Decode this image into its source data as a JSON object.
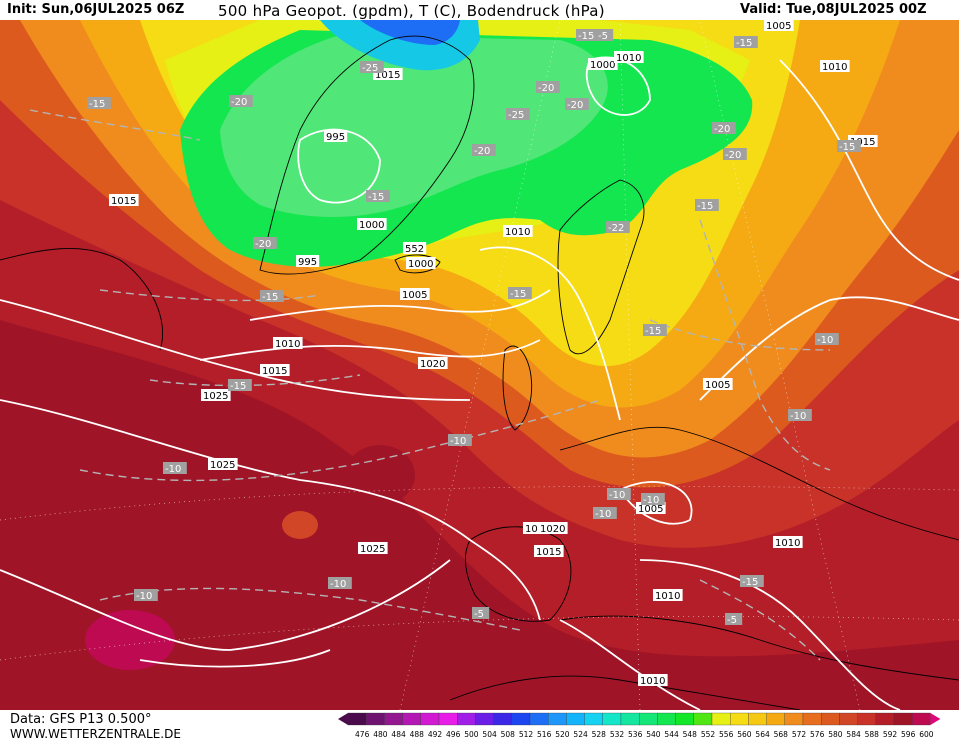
{
  "header": {
    "init": "Init: Sun,06JUL2025 06Z",
    "title": "500 hPa Geopot. (gpdm), T (C), Bodendruck (hPa)",
    "valid": "Valid: Tue,08JUL2025 00Z"
  },
  "footer": {
    "data_source": "Data: GFS P13 0.500°",
    "website": "WWW.WETTERZENTRALE.DE"
  },
  "legend": {
    "values": [
      "476",
      "480",
      "484",
      "488",
      "492",
      "496",
      "500",
      "504",
      "508",
      "512",
      "516",
      "520",
      "524",
      "528",
      "532",
      "536",
      "540",
      "544",
      "548",
      "552",
      "556",
      "560",
      "564",
      "568",
      "572",
      "576",
      "580",
      "584",
      "588",
      "592",
      "596",
      "600"
    ],
    "colors": [
      "#4b0a4b",
      "#6e1470",
      "#93188f",
      "#b418b4",
      "#d21ad2",
      "#e81ee8",
      "#a01ee6",
      "#6a1ee6",
      "#3a28e6",
      "#1e46f0",
      "#1e6ef5",
      "#1e96fa",
      "#14b4fa",
      "#14d2f0",
      "#14e6c8",
      "#14e6a0",
      "#14e678",
      "#14e650",
      "#14e628",
      "#50e614",
      "#e6f014",
      "#f5dc14",
      "#f5c814",
      "#f5aa14",
      "#f08c1e",
      "#e66e1e",
      "#dc5a1e",
      "#d24628",
      "#c83228",
      "#b41e28",
      "#a01428",
      "#be0a50",
      "#dc0a78"
    ],
    "shading_colors": {
      "deep_red": "#a01428",
      "red": "#c83228",
      "orange_red": "#dc5a1e",
      "orange": "#f08c1e",
      "yellow": "#f5dc14",
      "green": "#14e650",
      "cyan": "#14b4fa"
    }
  },
  "isobar_labels": [
    "1005",
    "1010",
    "1015",
    "1015",
    "1000",
    "1010",
    "1015",
    "995",
    "1000",
    "995",
    "1000",
    "1005",
    "1010",
    "1015",
    "1020",
    "1020",
    "1025",
    "1010",
    "1005",
    "1020",
    "1015",
    "1025",
    "1010",
    "1025",
    "1010",
    "1010",
    "1005",
    "552"
  ],
  "temperature_labels": [
    "-15",
    "-15",
    "-15",
    "-15",
    "-25",
    "-20",
    "-20",
    "-20",
    "-25",
    "-20",
    "-20",
    "-15",
    "-15",
    "-20",
    "-15",
    "-22",
    "-15",
    "-15",
    "-15",
    "-10",
    "-10",
    "-10",
    "-10",
    "-10",
    "-10",
    "-10",
    "-10",
    "-15",
    "-5",
    "-5",
    "-5",
    "-10",
    "-20"
  ]
}
